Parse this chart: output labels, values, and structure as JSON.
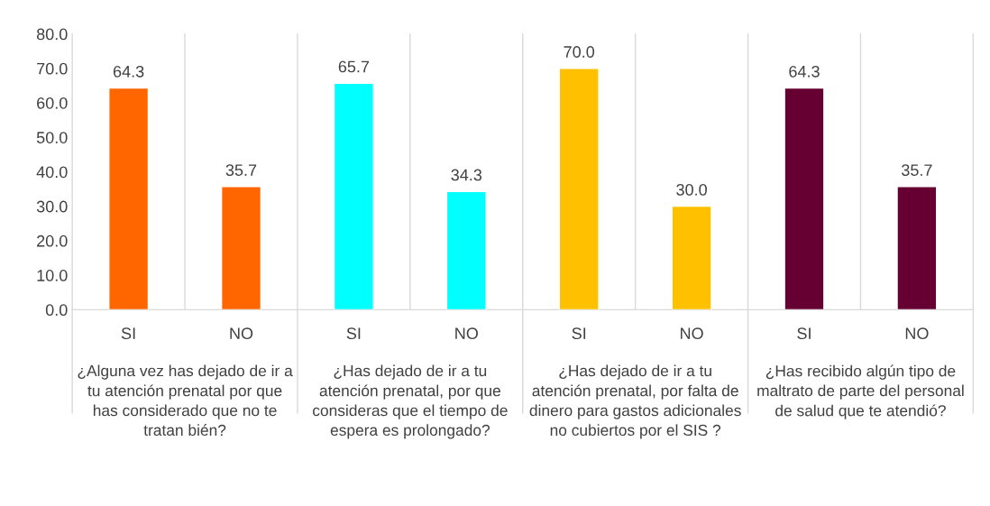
{
  "chart_data": {
    "type": "bar",
    "categories": [
      "SI",
      "NO",
      "SI",
      "NO",
      "SI",
      "NO",
      "SI",
      "NO"
    ],
    "values": [
      64.3,
      35.7,
      65.7,
      34.3,
      70.0,
      30.0,
      64.3,
      35.7
    ],
    "colors": [
      "#ff6600",
      "#ff6600",
      "#00ffff",
      "#00ffff",
      "#ffc000",
      "#ffc000",
      "#660033",
      "#660033"
    ],
    "ylim": [
      0,
      80
    ],
    "yticks": [
      {
        "value": 0,
        "label": "0.0"
      },
      {
        "value": 10,
        "label": "10.0"
      },
      {
        "value": 20,
        "label": "20.0"
      },
      {
        "value": 30,
        "label": "30.0"
      },
      {
        "value": 40,
        "label": "40.0"
      },
      {
        "value": 50,
        "label": "50.0"
      },
      {
        "value": 60,
        "label": "60.0"
      },
      {
        "value": 70,
        "label": "70.0"
      },
      {
        "value": 80,
        "label": "80.0"
      }
    ],
    "value_labels": [
      "64.3",
      "35.7",
      "65.7",
      "34.3",
      "70.0",
      "30.0",
      "64.3",
      "35.7"
    ],
    "annotations": [
      "¿Alguna vez has dejado de ir a tu atención prenatal por que has considerado que no te tratan bién?",
      "¿Has dejado de ir a tu atención prenatal, por que consideras que el tiempo de espera es prolongado?",
      "¿Has dejado de ir a tu atención prenatal, por falta de dinero para gastos adicionales no cubiertos por el SIS ?",
      "¿Has recibido algún tipo de maltrato de parte del personal de salud que te atendió?"
    ],
    "grid": false,
    "legend": false
  }
}
